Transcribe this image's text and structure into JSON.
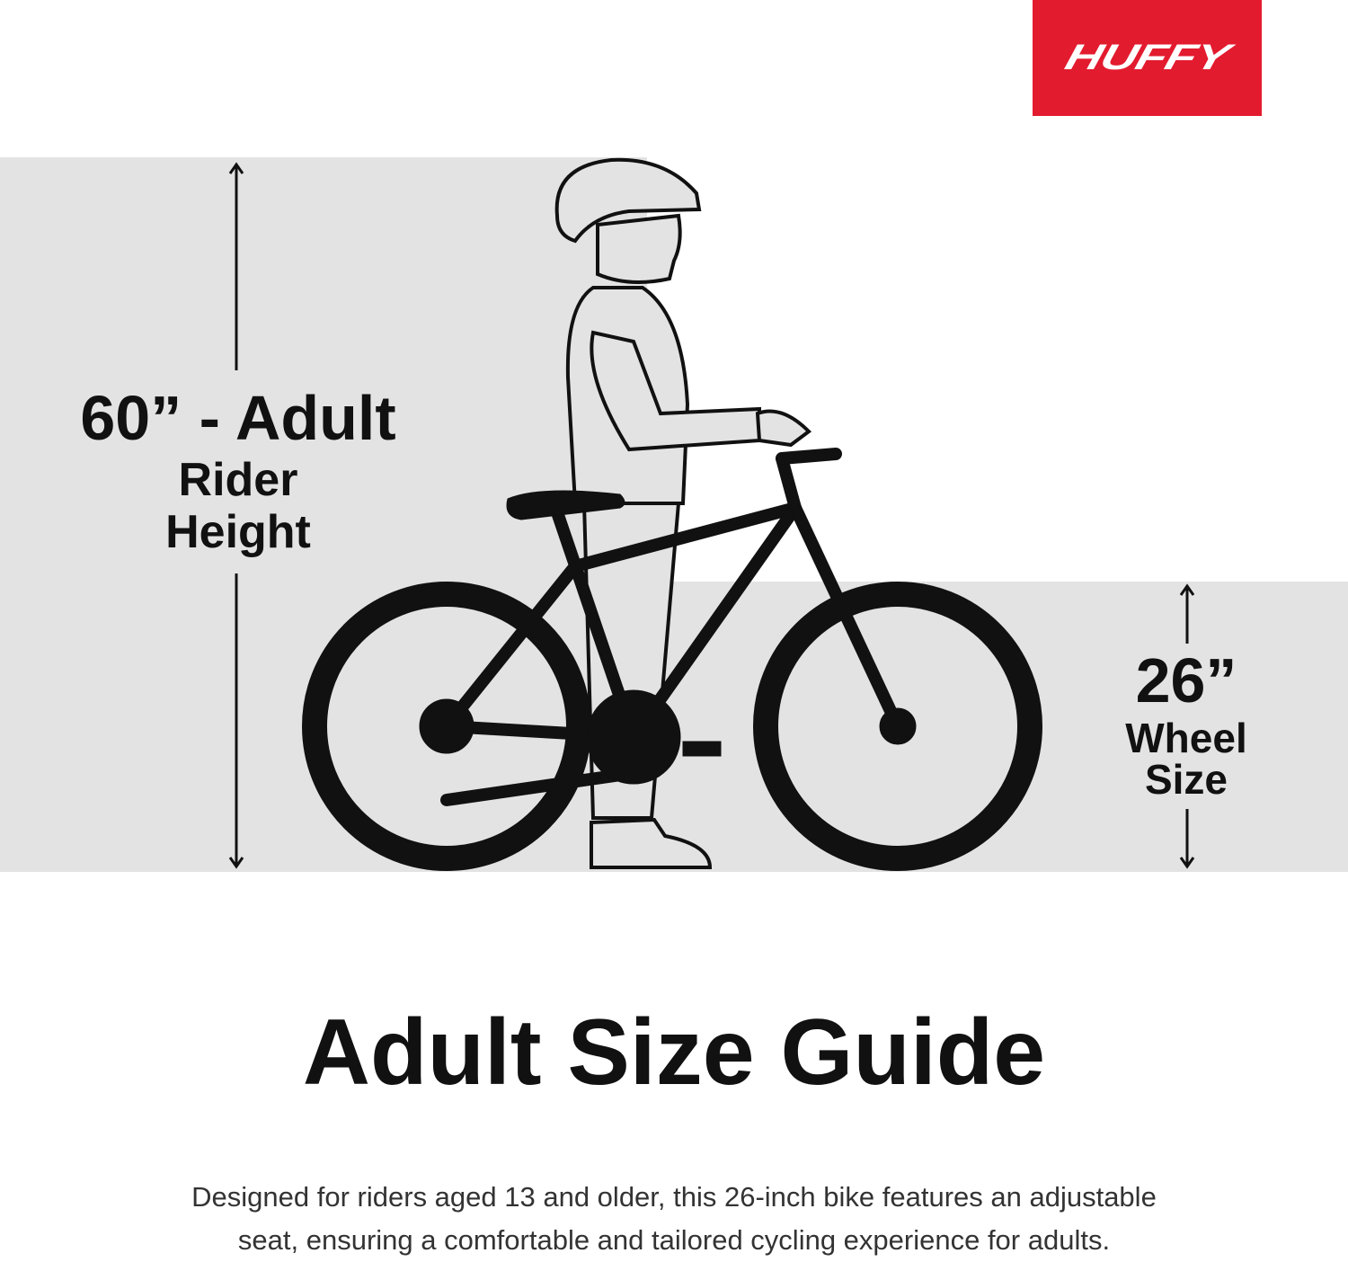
{
  "brand": {
    "logo_text": "HUFFY",
    "color": "#e31b2f"
  },
  "rider_height": {
    "value": "60” - Adult",
    "line2": "Rider",
    "line3": "Height"
  },
  "wheel_size": {
    "value": "26”",
    "line2": "Wheel",
    "line3": "Size"
  },
  "title": "Adult Size Guide",
  "description": {
    "line1": "Designed for riders aged 13 and older, this 26-inch bike features an adjustable",
    "line2": "seat, ensuring a comfortable and tailored cycling experience for adults."
  },
  "colors": {
    "panel": "#e3e3e3",
    "ink": "#111111"
  }
}
